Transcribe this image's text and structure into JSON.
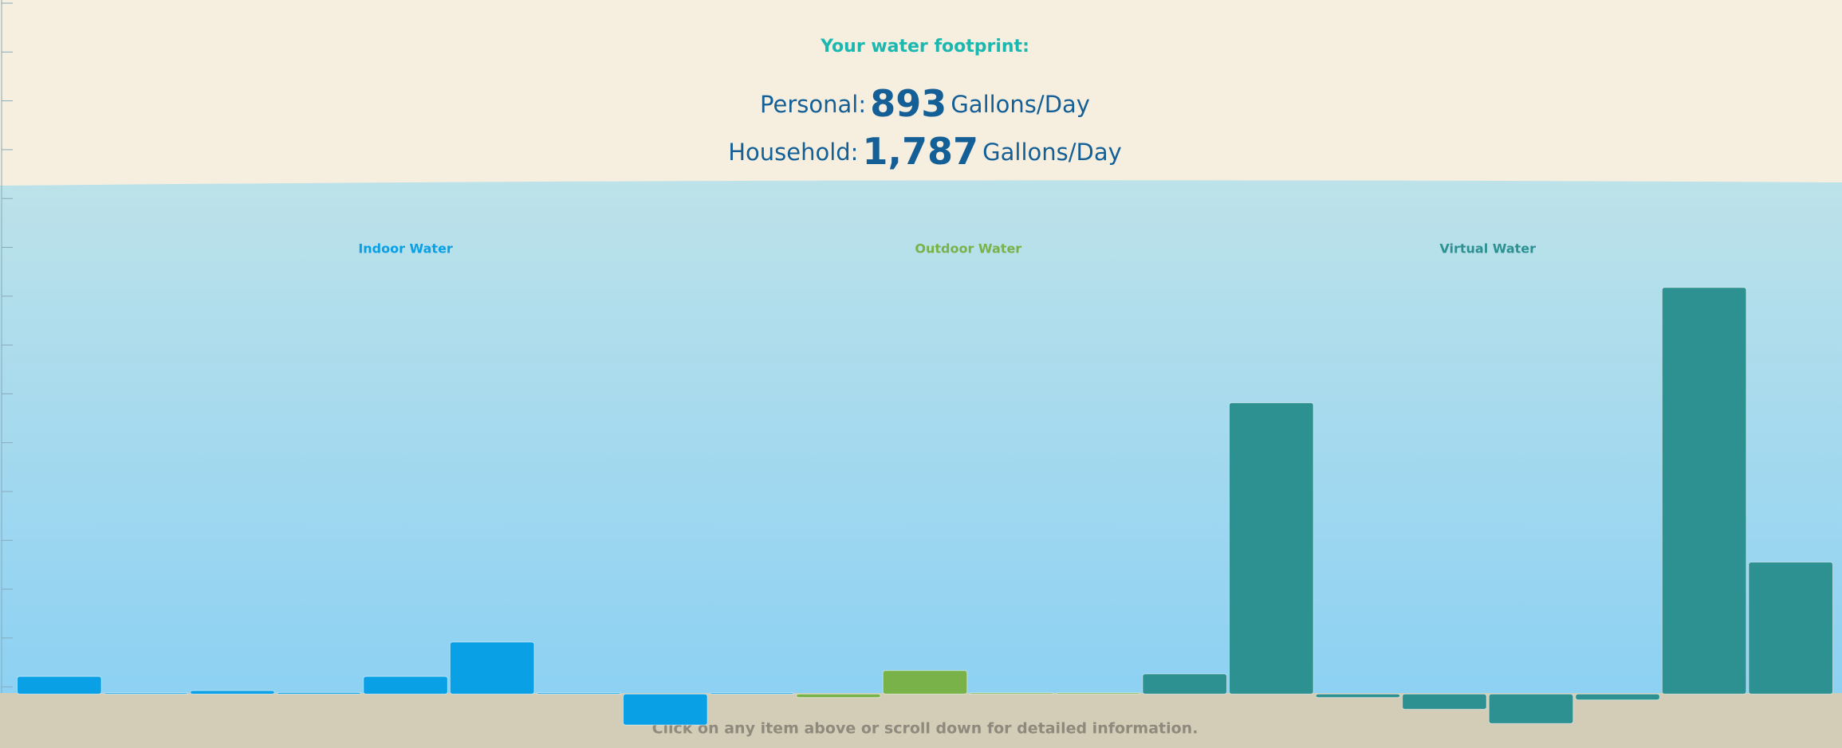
{
  "header": {
    "title": "Your water footprint:",
    "personal": {
      "label": "Personal:",
      "value": "893",
      "unit": "Gallons/Day"
    },
    "household": {
      "label": "Household:",
      "value": "1,787",
      "unit": "Gallons/Day"
    }
  },
  "chart_data": {
    "type": "bar",
    "groups": [
      {
        "name": "Indoor Water",
        "color": "#0aa0e6",
        "count": 9
      },
      {
        "name": "Outdoor Water",
        "color": "#7ab24a",
        "count": 4
      },
      {
        "name": "Virtual Water",
        "color": "#2e9191",
        "count": 8
      }
    ],
    "categories": [
      null,
      null,
      null,
      null,
      null,
      null,
      null,
      null,
      null,
      null,
      null,
      null,
      null,
      null,
      null,
      null,
      null,
      null,
      null,
      null,
      null
    ],
    "values": [
      0.36,
      0.02,
      0.07,
      0.03,
      0.36,
      1.06,
      0.02,
      -0.63,
      0.01,
      -0.07,
      0.48,
      0.01,
      0.02,
      0.41,
      5.94,
      -0.07,
      -0.31,
      -0.6,
      -0.12,
      8.29,
      2.69
    ],
    "ylim": [
      -1.1,
      10.4
    ]
  },
  "footer": {
    "note": "Click on any item above or scroll down for detailed information."
  }
}
